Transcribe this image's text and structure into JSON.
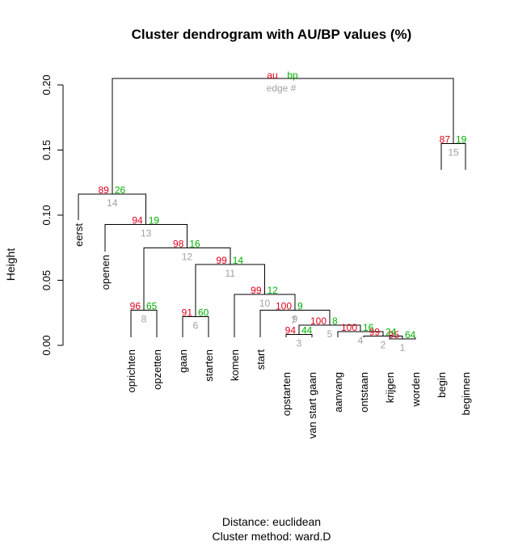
{
  "chart_data": {
    "type": "dendrogram",
    "title": "Cluster dendrogram with AU/BP values (%)",
    "ylabel": "Height",
    "ylim": [
      0,
      0.205
    ],
    "yticks": [
      "0.00",
      "0.05",
      "0.10",
      "0.15",
      "0.20"
    ],
    "ytick_values": [
      0,
      0.05,
      0.1,
      0.15,
      0.2
    ],
    "caption_distance": "Distance:  euclidean",
    "caption_method": "Cluster method: ward.D",
    "legend": {
      "au": "au",
      "bp": "bp",
      "edge": "edge #"
    },
    "colors": {
      "au": "#e0001b",
      "bp": "#00b000",
      "edge": "#a0a0a0"
    },
    "leaves": [
      "eerst",
      "openen",
      "oprichten",
      "opzetten",
      "gaan",
      "starten",
      "komen",
      "start",
      "opstarten",
      "van start gaan",
      "aanvang",
      "ontstaan",
      "krijgen",
      "worden",
      "begin",
      "beginnen"
    ],
    "leaf_order": [
      0,
      1,
      2,
      3,
      4,
      5,
      6,
      7,
      8,
      9,
      10,
      11,
      12,
      13,
      14,
      15
    ],
    "merges": [
      {
        "edge": 1,
        "left": "L12",
        "right": "L13",
        "height": 0.005,
        "au": "95",
        "bp": "64"
      },
      {
        "edge": 2,
        "left": "L11",
        "right": "N1",
        "height": 0.007,
        "au": "99",
        "bp": "24"
      },
      {
        "edge": 3,
        "left": "L8",
        "right": "L9",
        "height": 0.0085,
        "au": "94",
        "bp": "44"
      },
      {
        "edge": 4,
        "left": "L10",
        "right": "N2",
        "height": 0.0105,
        "au": "100",
        "bp": "16"
      },
      {
        "edge": 5,
        "left": "N3",
        "right": "N4",
        "height": 0.0155,
        "au": "100",
        "bp": "8"
      },
      {
        "edge": 6,
        "left": "L4",
        "right": "L5",
        "height": 0.022,
        "au": "91",
        "bp": "60"
      },
      {
        "edge": 7,
        "left": "N3",
        "right": "N5",
        "height": 0.02,
        "au": "",
        "bp": ""
      },
      {
        "edge": 8,
        "left": "L2",
        "right": "L3",
        "height": 0.027,
        "au": "96",
        "bp": "65"
      },
      {
        "edge": 9,
        "left": "L7",
        "right": "N5",
        "height": 0.027,
        "au": "100",
        "bp": "9"
      },
      {
        "edge": 10,
        "left": "L6",
        "right": "N9",
        "height": 0.039,
        "au": "99",
        "bp": "12"
      },
      {
        "edge": 11,
        "left": "N6",
        "right": "N10",
        "height": 0.062,
        "au": "99",
        "bp": "14"
      },
      {
        "edge": 12,
        "left": "N8",
        "right": "N11",
        "height": 0.075,
        "au": "98",
        "bp": "16"
      },
      {
        "edge": 13,
        "left": "L1",
        "right": "N12",
        "height": 0.093,
        "au": "94",
        "bp": "19"
      },
      {
        "edge": 14,
        "left": "L0",
        "right": "N13",
        "height": 0.116,
        "au": "89",
        "bp": "26"
      },
      {
        "edge": 15,
        "left": "L14",
        "right": "L15",
        "height": 0.155,
        "au": "87",
        "bp": "19"
      },
      {
        "edge": 16,
        "left": "N14",
        "right": "N15",
        "height": 0.205,
        "au": "",
        "bp": ""
      }
    ]
  }
}
